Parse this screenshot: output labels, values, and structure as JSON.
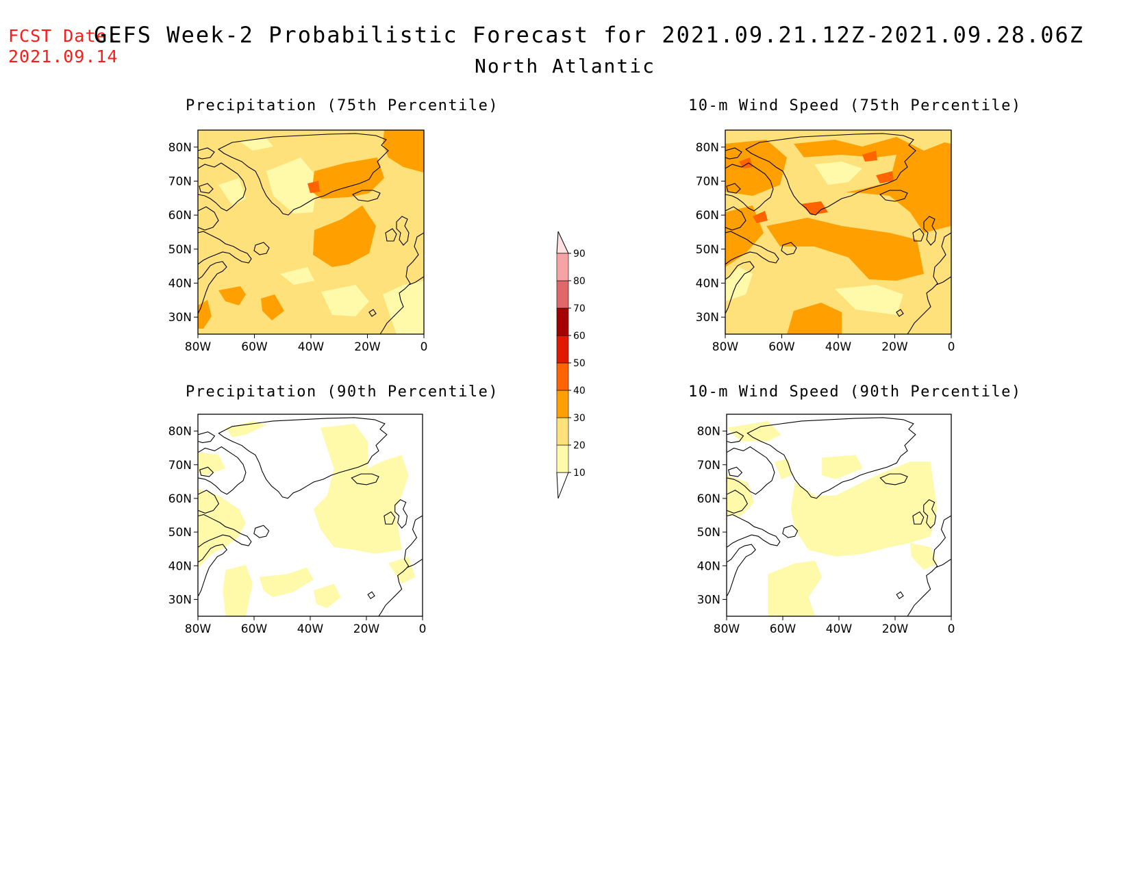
{
  "header": {
    "fcst_label": "FCST Date:",
    "fcst_date": "2021.09.14",
    "title": "GEFS Week-2 Probabilistic Forecast for 2021.09.21.12Z-2021.09.28.06Z",
    "region": "North Atlantic"
  },
  "panels": [
    {
      "title": "Precipitation (75th Percentile)"
    },
    {
      "title": "10-m Wind Speed (75th Percentile)"
    },
    {
      "title": "Precipitation (90th Percentile)"
    },
    {
      "title": "10-m Wind Speed (90th Percentile)"
    }
  ],
  "axes": {
    "lat_labels": [
      "80N",
      "70N",
      "60N",
      "50N",
      "40N",
      "30N"
    ],
    "lon_labels": [
      "80W",
      "60W",
      "40W",
      "20W",
      "0"
    ]
  },
  "colorbar": {
    "levels": [
      "10",
      "20",
      "30",
      "40",
      "50",
      "60",
      "70",
      "80",
      "90"
    ],
    "colors": [
      "#fffaaa",
      "#fee17a",
      "#ffa000",
      "#ff6400",
      "#e11900",
      "#a50000",
      "#e06868",
      "#f5a3a3",
      "#ffe0e0"
    ]
  },
  "chart_data": {
    "type": "heatmap",
    "x_range": [
      -80,
      0
    ],
    "y_range": [
      25,
      85
    ],
    "units": "%"
  }
}
